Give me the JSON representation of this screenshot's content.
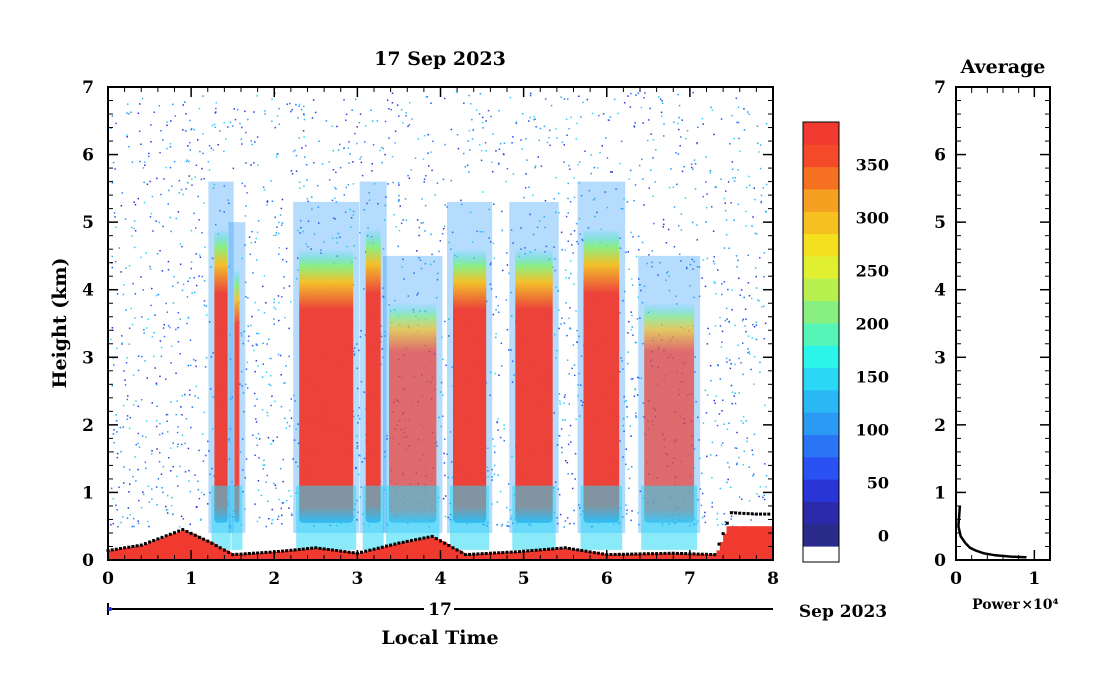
{
  "chart_data": [
    {
      "type": "heatmap",
      "title": "17 Sep 2023",
      "xlabel": "Local Time",
      "ylabel": "Height (km)",
      "xlim": [
        0,
        8
      ],
      "ylim": [
        0,
        7
      ],
      "x_ticks": [
        "0",
        "1",
        "2",
        "3",
        "4",
        "5",
        "6",
        "7",
        "8"
      ],
      "y_ticks": [
        "0",
        "1",
        "2",
        "3",
        "4",
        "5",
        "6",
        "7"
      ],
      "date_axis": {
        "day_label": "17",
        "month_year_label": "Sep 2023"
      },
      "colorbar": {
        "ticks": [
          "0",
          "50",
          "100",
          "150",
          "200",
          "250",
          "300",
          "350"
        ],
        "min": -25,
        "max": 390,
        "colors": [
          "#2a2a8a",
          "#2a2aaa",
          "#2a35d8",
          "#2a52f2",
          "#2a75f5",
          "#2a9af5",
          "#2ab8f5",
          "#2ad8f5",
          "#2af5e8",
          "#55f5b8",
          "#88f080",
          "#b8f050",
          "#e0f030",
          "#f5e020",
          "#f5c020",
          "#f5a020",
          "#f57020",
          "#f54a2a",
          "#f03a30"
        ]
      },
      "cloud_bands": [
        {
          "x0": 1.28,
          "x1": 1.44,
          "top": 4.9,
          "intensity": 0.95
        },
        {
          "x0": 1.52,
          "x1": 1.58,
          "top": 4.3,
          "intensity": 0.9
        },
        {
          "x0": 2.3,
          "x1": 2.95,
          "top": 4.6,
          "intensity": 0.95
        },
        {
          "x0": 3.1,
          "x1": 3.28,
          "top": 4.9,
          "intensity": 0.95
        },
        {
          "x0": 3.38,
          "x1": 3.95,
          "top": 3.8,
          "intensity": 0.7
        },
        {
          "x0": 4.15,
          "x1": 4.55,
          "top": 4.6,
          "intensity": 0.95
        },
        {
          "x0": 4.9,
          "x1": 5.35,
          "top": 4.6,
          "intensity": 0.95
        },
        {
          "x0": 5.72,
          "x1": 6.15,
          "top": 4.9,
          "intensity": 0.95
        },
        {
          "x0": 6.45,
          "x1": 7.05,
          "top": 3.8,
          "intensity": 0.7
        }
      ],
      "boundary_layer_height_km": [
        {
          "x": 0.0,
          "y": 0.14
        },
        {
          "x": 0.4,
          "y": 0.22
        },
        {
          "x": 0.9,
          "y": 0.45
        },
        {
          "x": 1.2,
          "y": 0.28
        },
        {
          "x": 1.5,
          "y": 0.08
        },
        {
          "x": 2.0,
          "y": 0.12
        },
        {
          "x": 2.5,
          "y": 0.18
        },
        {
          "x": 3.0,
          "y": 0.1
        },
        {
          "x": 3.5,
          "y": 0.25
        },
        {
          "x": 3.9,
          "y": 0.35
        },
        {
          "x": 4.3,
          "y": 0.08
        },
        {
          "x": 4.9,
          "y": 0.12
        },
        {
          "x": 5.5,
          "y": 0.18
        },
        {
          "x": 6.0,
          "y": 0.08
        },
        {
          "x": 6.8,
          "y": 0.1
        },
        {
          "x": 7.3,
          "y": 0.08
        },
        {
          "x": 7.5,
          "y": 0.7
        },
        {
          "x": 7.8,
          "y": 0.68
        }
      ]
    },
    {
      "type": "line",
      "title": "Average",
      "xlabel": "Power",
      "x_multiplier_label": "×10⁴",
      "xlim": [
        0,
        1.2
      ],
      "ylim": [
        0,
        7
      ],
      "x_ticks": [
        "0",
        "1"
      ],
      "y_ticks": [
        "0",
        "1",
        "2",
        "3",
        "4",
        "5",
        "6",
        "7"
      ],
      "series": [
        {
          "x": [
            0.05,
            0.03,
            0.06,
            0.12,
            0.18,
            0.25,
            0.35,
            0.5,
            0.7,
            0.9
          ],
          "y": [
            0.8,
            0.5,
            0.35,
            0.25,
            0.18,
            0.14,
            0.1,
            0.07,
            0.05,
            0.04
          ]
        }
      ]
    }
  ]
}
